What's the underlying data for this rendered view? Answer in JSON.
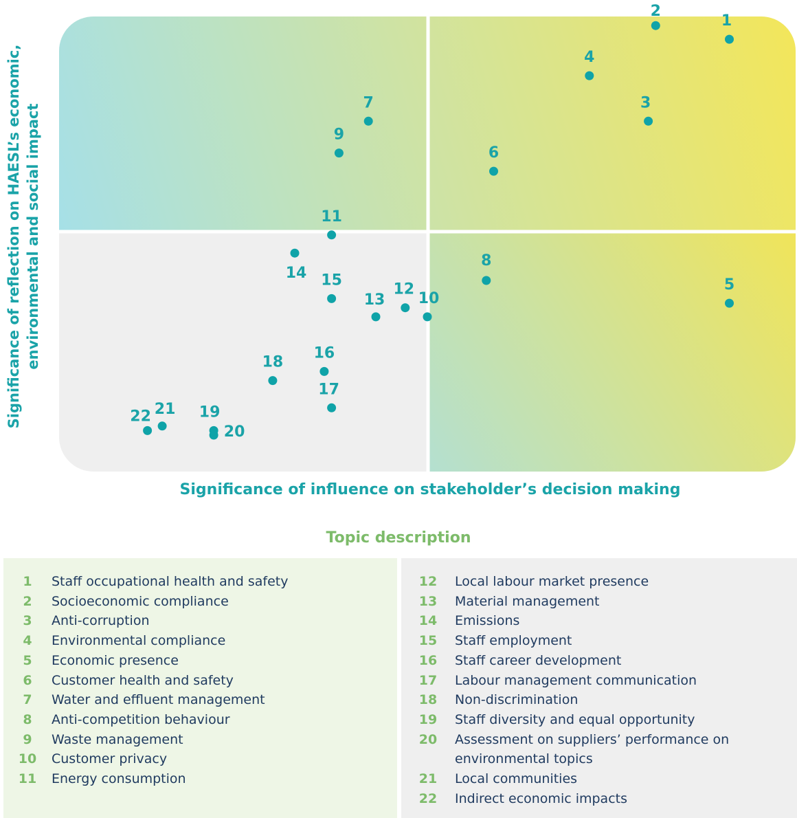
{
  "chart_data": {
    "type": "scatter",
    "xlabel": "Significance of influence on stakeholder’s decision making",
    "ylabel": "Significance of reflection on HAESL’s economic, environmental and social impact",
    "xlim": [
      0,
      100
    ],
    "ylim": [
      0,
      100
    ],
    "grid": "quadrant dividers at midpoint",
    "colors": {
      "point": "#0fa3a8",
      "label": "#1aa3a8",
      "quadrant_cool": "#a7e1e6",
      "quadrant_warm": "#f2e45c",
      "quadrant_low": "#efefef"
    },
    "points": [
      {
        "id": "1",
        "x": 91,
        "y": 95
      },
      {
        "id": "2",
        "x": 81,
        "y": 98
      },
      {
        "id": "3",
        "x": 80,
        "y": 77
      },
      {
        "id": "4",
        "x": 72,
        "y": 87
      },
      {
        "id": "5",
        "x": 91,
        "y": 37
      },
      {
        "id": "6",
        "x": 59,
        "y": 66
      },
      {
        "id": "7",
        "x": 42,
        "y": 77
      },
      {
        "id": "8",
        "x": 58,
        "y": 42
      },
      {
        "id": "9",
        "x": 38,
        "y": 70
      },
      {
        "id": "10",
        "x": 50,
        "y": 34
      },
      {
        "id": "11",
        "x": 37,
        "y": 52
      },
      {
        "id": "12",
        "x": 47,
        "y": 36
      },
      {
        "id": "13",
        "x": 43,
        "y": 34
      },
      {
        "id": "14",
        "x": 32,
        "y": 48
      },
      {
        "id": "15",
        "x": 37,
        "y": 38
      },
      {
        "id": "16",
        "x": 36,
        "y": 22
      },
      {
        "id": "17",
        "x": 37,
        "y": 14
      },
      {
        "id": "18",
        "x": 29,
        "y": 20
      },
      {
        "id": "19",
        "x": 21,
        "y": 9
      },
      {
        "id": "20",
        "x": 21,
        "y": 8
      },
      {
        "id": "21",
        "x": 14,
        "y": 10
      },
      {
        "id": "22",
        "x": 12,
        "y": 9
      }
    ]
  },
  "legend": {
    "title": "Topic description",
    "left": [
      {
        "num": "1",
        "text": "Staff occupational health and safety"
      },
      {
        "num": "2",
        "text": "Socioeconomic compliance"
      },
      {
        "num": "3",
        "text": "Anti-corruption"
      },
      {
        "num": "4",
        "text": "Environmental compliance"
      },
      {
        "num": "5",
        "text": "Economic presence"
      },
      {
        "num": "6",
        "text": "Customer health and safety"
      },
      {
        "num": "7",
        "text": "Water and effluent management"
      },
      {
        "num": "8",
        "text": "Anti-competition behaviour"
      },
      {
        "num": "9",
        "text": "Waste management"
      },
      {
        "num": "10",
        "text": "Customer privacy"
      },
      {
        "num": "11",
        "text": "Energy consumption"
      }
    ],
    "right": [
      {
        "num": "12",
        "text": "Local labour market presence"
      },
      {
        "num": "13",
        "text": "Material management"
      },
      {
        "num": "14",
        "text": "Emissions"
      },
      {
        "num": "15",
        "text": "Staff employment"
      },
      {
        "num": "16",
        "text": "Staff career development"
      },
      {
        "num": "17",
        "text": "Labour management communication"
      },
      {
        "num": "18",
        "text": "Non-discrimination"
      },
      {
        "num": "19",
        "text": "Staff diversity and equal opportunity"
      },
      {
        "num": "20",
        "text": "Assessment on suppliers’ performance on environmental topics"
      },
      {
        "num": "21",
        "text": "Local communities"
      },
      {
        "num": "22",
        "text": "Indirect economic impacts"
      }
    ]
  }
}
